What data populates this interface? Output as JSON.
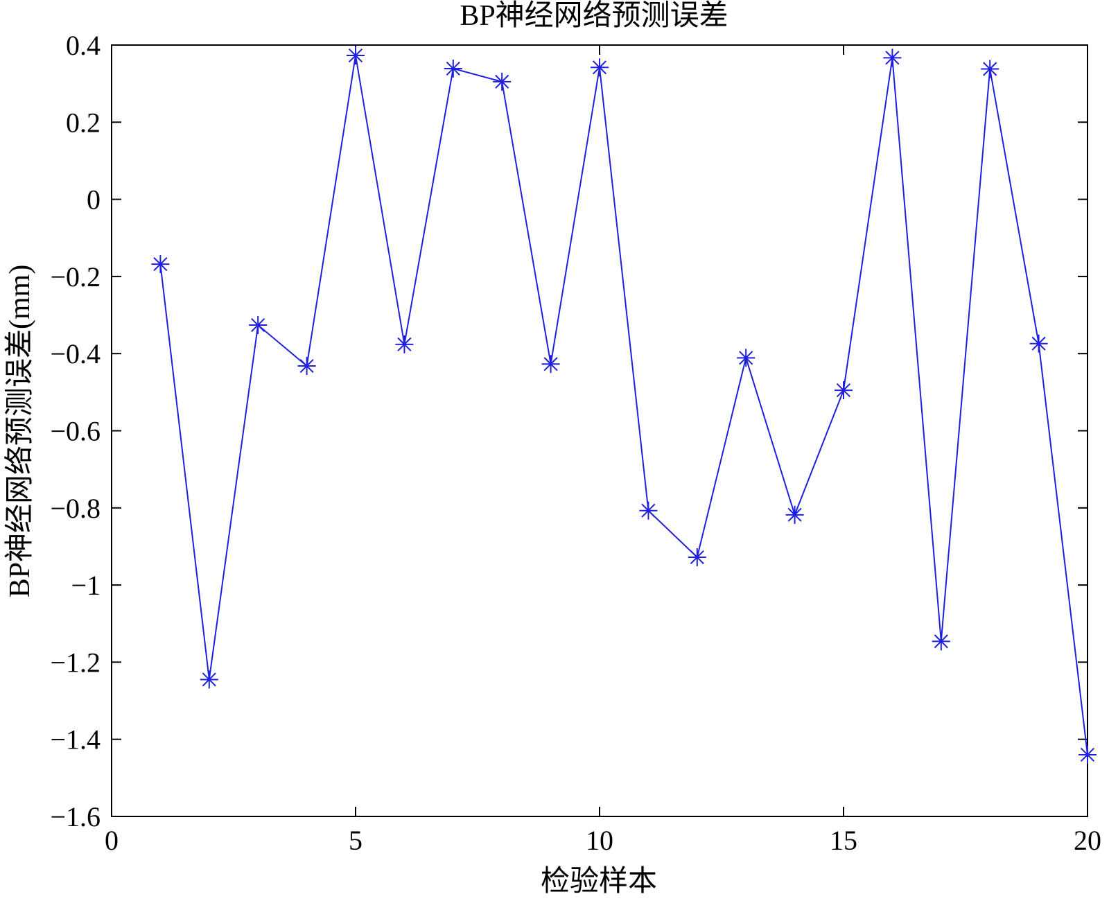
{
  "chart_data": {
    "type": "line",
    "title": "BP神经网络预测误差",
    "xlabel": "检验样本",
    "ylabel": "BP神经网络预测误差(mm)",
    "xlim": [
      0,
      20
    ],
    "ylim": [
      -1.6,
      0.4
    ],
    "xticks": [
      0,
      5,
      10,
      15,
      20
    ],
    "xtick_labels": [
      "0",
      "5",
      "10",
      "15",
      "20"
    ],
    "yticks": [
      0.4,
      0.2,
      0,
      -0.2,
      -0.4,
      -0.6,
      -0.8,
      -1,
      -1.2,
      -1.4,
      -1.6
    ],
    "ytick_labels": [
      "0.4",
      "0.2",
      "0",
      "−0.2",
      "−0.4",
      "−0.6",
      "−0.8",
      "−1",
      "−1.2",
      "−1.4",
      "−1.6"
    ],
    "grid": false,
    "marker": "asterisk",
    "color": "#1f1fe0",
    "series": [
      {
        "x": [
          1,
          2,
          3,
          4,
          5,
          6,
          7,
          8,
          9,
          10,
          11,
          12,
          13,
          14,
          15,
          16,
          17,
          18,
          19,
          20
        ],
        "y": [
          -0.168,
          -1.245,
          -0.326,
          -0.432,
          0.373,
          -0.376,
          0.339,
          0.305,
          -0.427,
          0.342,
          -0.807,
          -0.928,
          -0.411,
          -0.818,
          -0.495,
          0.367,
          -1.146,
          0.338,
          -0.374,
          -1.44
        ]
      }
    ]
  }
}
